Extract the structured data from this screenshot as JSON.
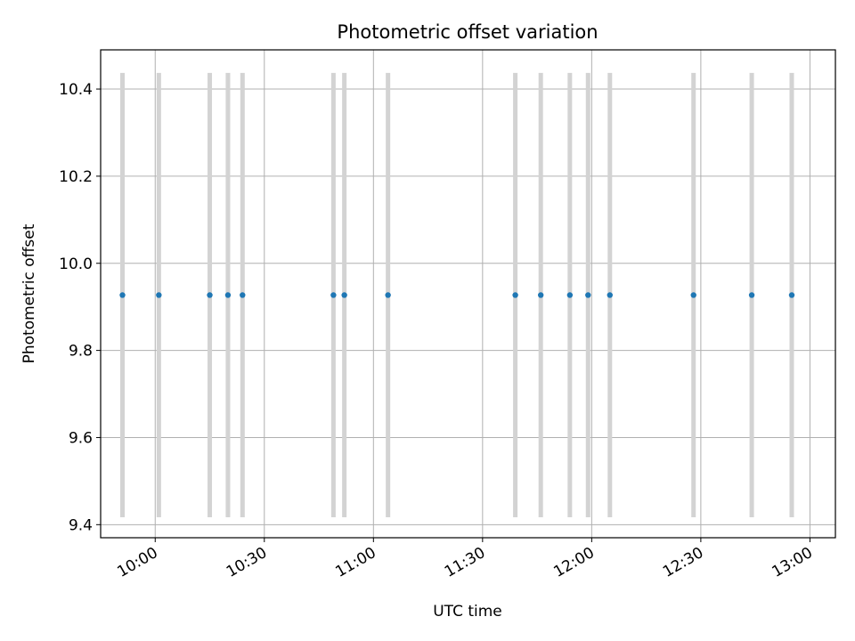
{
  "chart_data": {
    "type": "scatter",
    "title": "Photometric offset variation",
    "xlabel": "UTC time",
    "ylabel": "Photometric offset",
    "x_unit": "UTC HH:MM",
    "xlim": [
      "09:45",
      "13:07"
    ],
    "ylim": [
      9.37,
      10.49
    ],
    "x_ticks": [
      "10:00",
      "10:30",
      "11:00",
      "11:30",
      "12:00",
      "12:30",
      "13:00"
    ],
    "y_ticks": [
      9.4,
      9.6,
      9.8,
      10.0,
      10.2,
      10.4
    ],
    "y_tick_labels": [
      "9.4",
      "9.6",
      "9.8",
      "10.0",
      "10.2",
      "10.4"
    ],
    "x_tick_label_rotation_deg": 30,
    "grid": true,
    "legend": "none",
    "series": [
      {
        "color": "#1f77b4",
        "errorbar_color": "#d3d3d3",
        "points": [
          {
            "x": "09:51",
            "y": 9.927,
            "yerr": 0.51
          },
          {
            "x": "10:01",
            "y": 9.927,
            "yerr": 0.51
          },
          {
            "x": "10:15",
            "y": 9.927,
            "yerr": 0.51
          },
          {
            "x": "10:20",
            "y": 9.927,
            "yerr": 0.51
          },
          {
            "x": "10:24",
            "y": 9.927,
            "yerr": 0.51
          },
          {
            "x": "10:49",
            "y": 9.927,
            "yerr": 0.51
          },
          {
            "x": "10:52",
            "y": 9.927,
            "yerr": 0.51
          },
          {
            "x": "11:04",
            "y": 9.927,
            "yerr": 0.51
          },
          {
            "x": "11:39",
            "y": 9.927,
            "yerr": 0.51
          },
          {
            "x": "11:46",
            "y": 9.927,
            "yerr": 0.51
          },
          {
            "x": "11:54",
            "y": 9.927,
            "yerr": 0.51
          },
          {
            "x": "11:59",
            "y": 9.927,
            "yerr": 0.51
          },
          {
            "x": "12:05",
            "y": 9.927,
            "yerr": 0.51
          },
          {
            "x": "12:28",
            "y": 9.927,
            "yerr": 0.51
          },
          {
            "x": "12:44",
            "y": 9.927,
            "yerr": 0.51
          },
          {
            "x": "12:55",
            "y": 9.927,
            "yerr": 0.51
          }
        ]
      }
    ]
  }
}
